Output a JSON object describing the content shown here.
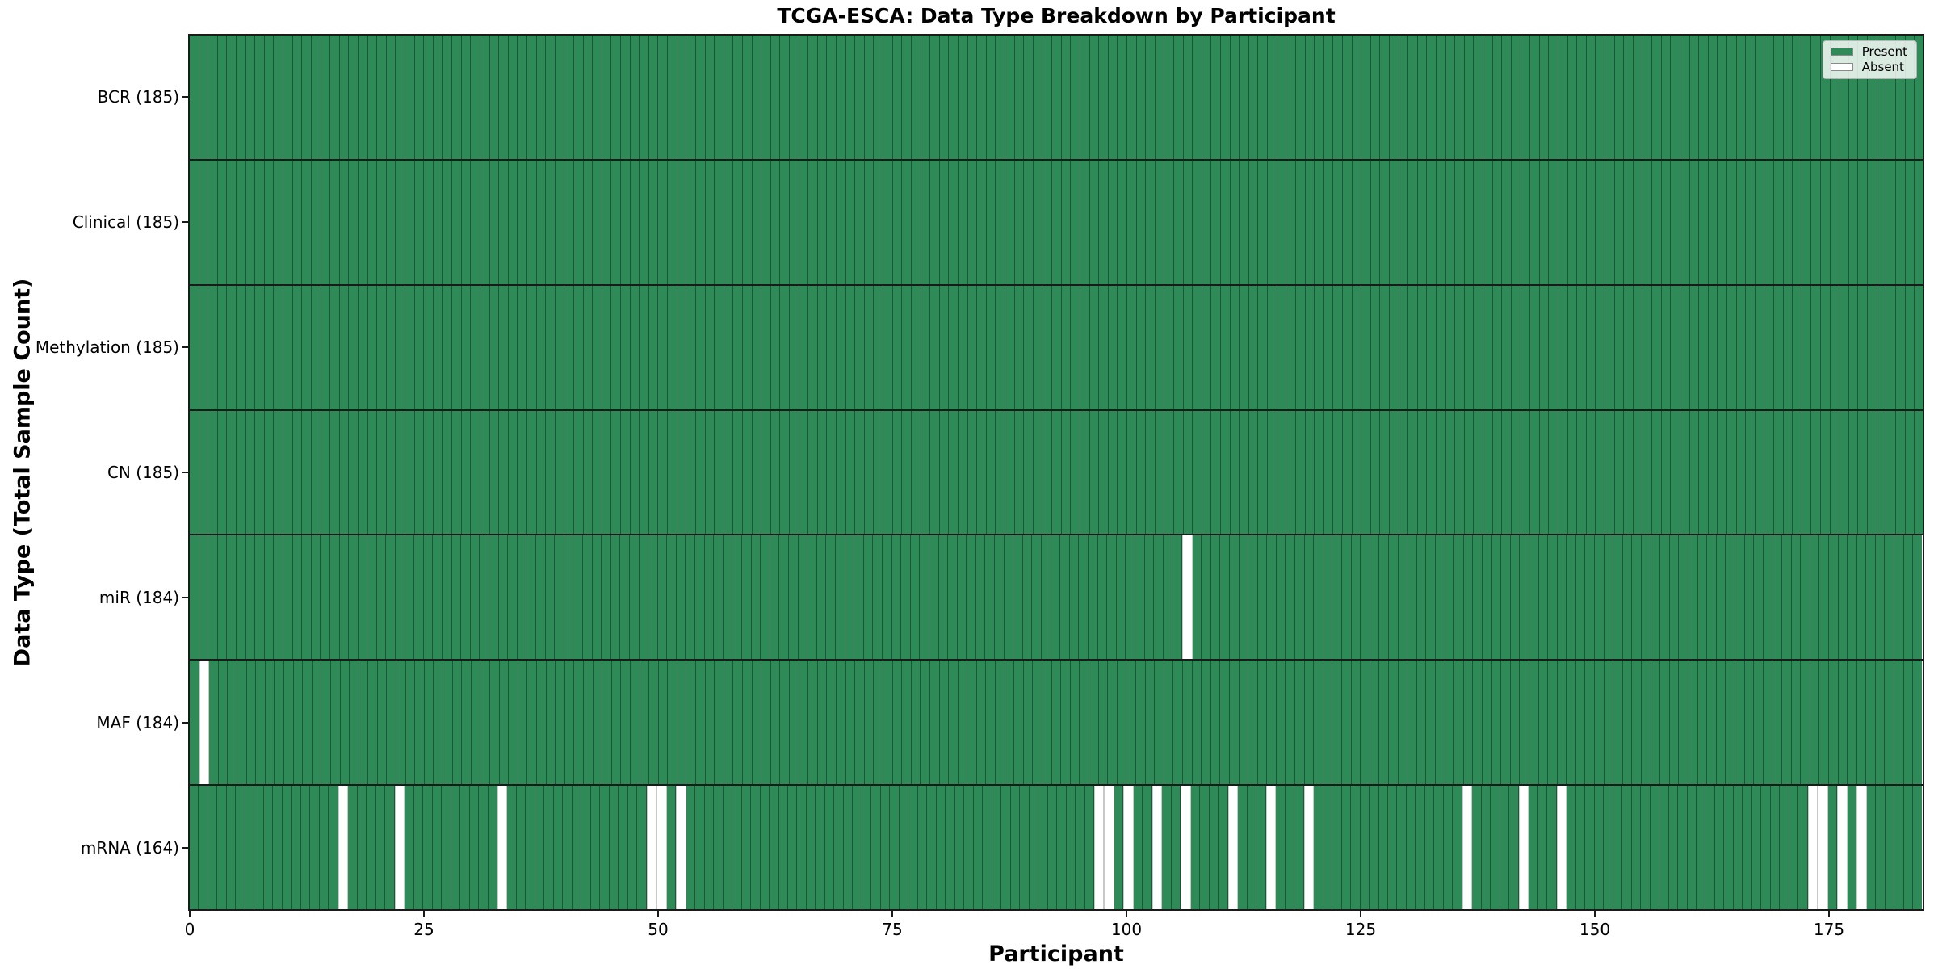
{
  "title": "TCGA-ESCA: Data Type Breakdown by Participant",
  "axes": {
    "xlabel": "Participant",
    "ylabel": "Data Type (Total Sample Count)"
  },
  "legend": {
    "position": "upper right",
    "entries": [
      {
        "label": "Present",
        "color": "#2e8b57"
      },
      {
        "label": "Absent",
        "color": "#ffffff"
      }
    ]
  },
  "chart_data": {
    "type": "heatmap",
    "title": "TCGA-ESCA: Data Type Breakdown by Participant",
    "xlabel": "Participant",
    "ylabel": "Data Type (Total Sample Count)",
    "x_ticks": [
      0,
      25,
      50,
      75,
      100,
      125,
      150,
      175
    ],
    "x_range": [
      0,
      185
    ],
    "n_participants": 185,
    "grid": false,
    "legend_position": "upper right",
    "colors": {
      "present": "#2e8b57",
      "absent": "#ffffff",
      "cell_edge": "rgba(0,0,0,0.38)"
    },
    "value_legend": {
      "present": "Present",
      "absent": "Absent"
    },
    "rows": [
      {
        "label": "BCR (185)",
        "data_type": "BCR",
        "total_sample_count": 185,
        "absent_participants": []
      },
      {
        "label": "Clinical (185)",
        "data_type": "Clinical",
        "total_sample_count": 185,
        "absent_participants": []
      },
      {
        "label": "Methylation (185)",
        "data_type": "Methylation",
        "total_sample_count": 185,
        "absent_participants": []
      },
      {
        "label": "CN (185)",
        "data_type": "CN",
        "total_sample_count": 185,
        "absent_participants": []
      },
      {
        "label": "miR (184)",
        "data_type": "miR",
        "total_sample_count": 184,
        "absent_participants": [
          106
        ]
      },
      {
        "label": "MAF (184)",
        "data_type": "MAF",
        "total_sample_count": 184,
        "absent_participants": [
          1
        ]
      },
      {
        "label": "mRNA (164)",
        "data_type": "mRNA",
        "total_sample_count": 164,
        "absent_participants": [
          16,
          22,
          33,
          49,
          50,
          52,
          97,
          98,
          100,
          103,
          106,
          111,
          115,
          119,
          136,
          142,
          146,
          173,
          174,
          176,
          178
        ]
      }
    ]
  }
}
